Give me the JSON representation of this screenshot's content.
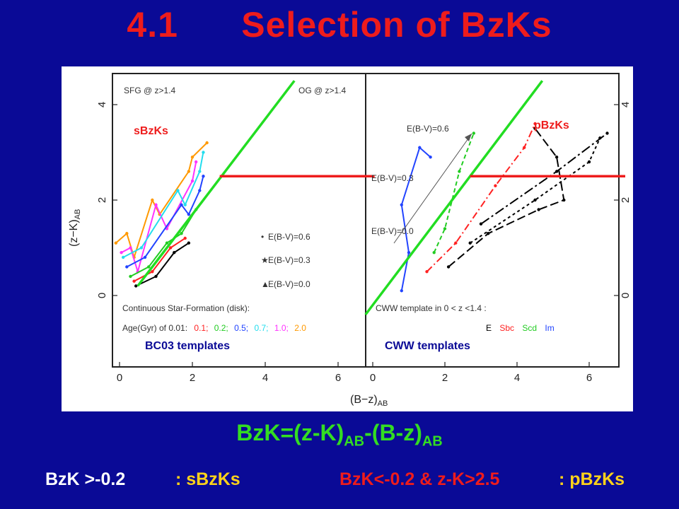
{
  "slide": {
    "title": "4.1      Selection of BzKs",
    "formula": {
      "lhs": "BzK=(z-K)",
      "sub1": "AB",
      "mid": "-(B-z)",
      "sub2": "AB"
    },
    "rule_s": {
      "cond": "BzK >-0.2",
      "tag": ": sBzKs"
    },
    "rule_p": {
      "cond": "BzK<-0.2 & z-K>2.5",
      "tag": ": pBzKs"
    }
  },
  "figure": {
    "left_panel": {
      "top_left_label": "SFG @ z>1.4",
      "top_right_label": "OG @ z>1.4",
      "overlay_label": "sBzKs",
      "caption": "BC03 templates",
      "legend": [
        "E(B-V)=0.6",
        "E(B-V)=0.3",
        "E(B-V)=0.0"
      ],
      "legend_markers": [
        "•",
        "★",
        "▲"
      ],
      "note_line1": "Continuous Star-Formation (disk):",
      "note_line2_prefix": "Age(Gyr) of 0.01:",
      "ages": [
        {
          "label": "0.1;",
          "color": "#ff2222"
        },
        {
          "label": "0.2;",
          "color": "#22cc22"
        },
        {
          "label": "0.5;",
          "color": "#2244ff"
        },
        {
          "label": "0.7;",
          "color": "#22ddee"
        },
        {
          "label": "1.0;",
          "color": "#ff33ff"
        },
        {
          "label": "2.0",
          "color": "#ff9900"
        }
      ]
    },
    "right_panel": {
      "overlay_label": "pBzKs",
      "caption": "CWW templates",
      "ebv_labels": [
        "E(B-V)=0.6",
        "E(B-V)=0.3",
        "E(B-V)=0.0"
      ],
      "note": "CWW template in 0 < z <1.4 :",
      "templates": [
        {
          "label": "E",
          "color": "#000000"
        },
        {
          "label": "Sbc",
          "color": "#ff2222"
        },
        {
          "label": "Scd",
          "color": "#22cc22"
        },
        {
          "label": "Im",
          "color": "#2244ff"
        }
      ]
    },
    "x_axis_label": "(B−z)",
    "x_axis_sub": "AB",
    "y_axis_label": "(z−K)",
    "y_axis_sub": "AB"
  },
  "chart_data": {
    "type": "scatter",
    "title": "",
    "xlabel": "(B−z)AB",
    "ylabel": "(z−K)AB",
    "xlim": [
      -0.2,
      7
    ],
    "ylim": [
      -0.8,
      4.5
    ],
    "left_x_ticks": [
      0,
      2,
      4,
      6
    ],
    "right_x_ticks": [
      0,
      2,
      4,
      6
    ],
    "y_ticks": [
      0,
      2,
      4
    ],
    "lines": [
      {
        "name": "BzK = -0.2 (left)",
        "color": "#22dd22",
        "points": [
          [
            0.5,
            0.2
          ],
          [
            4.8,
            4.5
          ]
        ]
      },
      {
        "name": "z-K = 2.5 (left)",
        "color": "#ee1c1c",
        "points": [
          [
            2.75,
            2.5
          ],
          [
            7.0,
            2.5
          ]
        ]
      },
      {
        "name": "BzK = -0.2 (right)",
        "color": "#22dd22",
        "points": [
          [
            -0.2,
            -0.4
          ],
          [
            4.7,
            4.5
          ]
        ]
      },
      {
        "name": "z-K = 2.5 (right)",
        "color": "#ee1c1c",
        "points": [
          [
            2.7,
            2.5
          ],
          [
            7.0,
            2.5
          ]
        ]
      }
    ],
    "left_tracks": [
      {
        "color": "#ff9900",
        "points": [
          [
            -0.1,
            1.1
          ],
          [
            0.2,
            1.3
          ],
          [
            0.4,
            0.8
          ],
          [
            0.9,
            2.0
          ],
          [
            1.1,
            1.7
          ],
          [
            1.9,
            2.6
          ],
          [
            2.0,
            2.9
          ],
          [
            2.4,
            3.2
          ]
        ]
      },
      {
        "color": "#ff33ff",
        "points": [
          [
            0.05,
            0.9
          ],
          [
            0.3,
            1.0
          ],
          [
            0.5,
            0.5
          ],
          [
            1.0,
            1.9
          ],
          [
            1.3,
            1.4
          ],
          [
            2.0,
            2.4
          ],
          [
            2.1,
            2.8
          ]
        ]
      },
      {
        "color": "#22ddee",
        "points": [
          [
            0.1,
            0.8
          ],
          [
            0.6,
            1.0
          ],
          [
            1.6,
            2.2
          ],
          [
            1.8,
            1.9
          ],
          [
            2.2,
            2.6
          ],
          [
            2.3,
            3.0
          ]
        ]
      },
      {
        "color": "#2244ff",
        "points": [
          [
            0.2,
            0.6
          ],
          [
            0.7,
            0.8
          ],
          [
            1.7,
            1.9
          ],
          [
            1.9,
            1.7
          ],
          [
            2.2,
            2.2
          ],
          [
            2.3,
            2.5
          ]
        ]
      },
      {
        "color": "#22cc22",
        "points": [
          [
            0.3,
            0.4
          ],
          [
            0.8,
            0.6
          ],
          [
            1.3,
            1.1
          ],
          [
            1.7,
            1.3
          ],
          [
            2.1,
            1.8
          ]
        ]
      },
      {
        "color": "#ff2222",
        "points": [
          [
            0.4,
            0.3
          ],
          [
            0.9,
            0.5
          ],
          [
            1.4,
            1.0
          ],
          [
            1.8,
            1.2
          ]
        ]
      },
      {
        "color": "#000000",
        "points": [
          [
            0.45,
            0.2
          ],
          [
            1.0,
            0.4
          ],
          [
            1.5,
            0.9
          ],
          [
            1.9,
            1.1
          ]
        ]
      }
    ],
    "right_tracks": [
      {
        "color": "#2244ff",
        "points": [
          [
            0.8,
            0.1
          ],
          [
            1.0,
            0.9
          ],
          [
            0.8,
            1.9
          ],
          [
            1.3,
            3.1
          ],
          [
            1.6,
            2.9
          ]
        ]
      },
      {
        "color": "#22cc22",
        "points": [
          [
            1.7,
            0.9
          ],
          [
            2.0,
            1.4
          ],
          [
            2.4,
            2.6
          ],
          [
            2.8,
            3.4
          ]
        ]
      },
      {
        "color": "#ff2222",
        "points": [
          [
            1.5,
            0.5
          ],
          [
            2.3,
            1.1
          ],
          [
            3.4,
            2.3
          ],
          [
            4.2,
            3.1
          ],
          [
            4.5,
            3.6
          ]
        ]
      },
      {
        "color": "#000000",
        "points": [
          [
            2.1,
            0.6
          ],
          [
            3.2,
            1.3
          ],
          [
            4.6,
            1.8
          ],
          [
            5.3,
            2.0
          ],
          [
            5.1,
            2.9
          ],
          [
            4.5,
            3.5
          ]
        ]
      },
      {
        "color": "#000000",
        "points": [
          [
            2.7,
            1.1
          ],
          [
            4.5,
            2.0
          ],
          [
            6.0,
            2.8
          ],
          [
            6.3,
            3.3
          ]
        ]
      },
      {
        "color": "#000000",
        "points": [
          [
            3.0,
            1.5
          ],
          [
            5.1,
            2.6
          ],
          [
            6.5,
            3.4
          ]
        ]
      }
    ]
  }
}
